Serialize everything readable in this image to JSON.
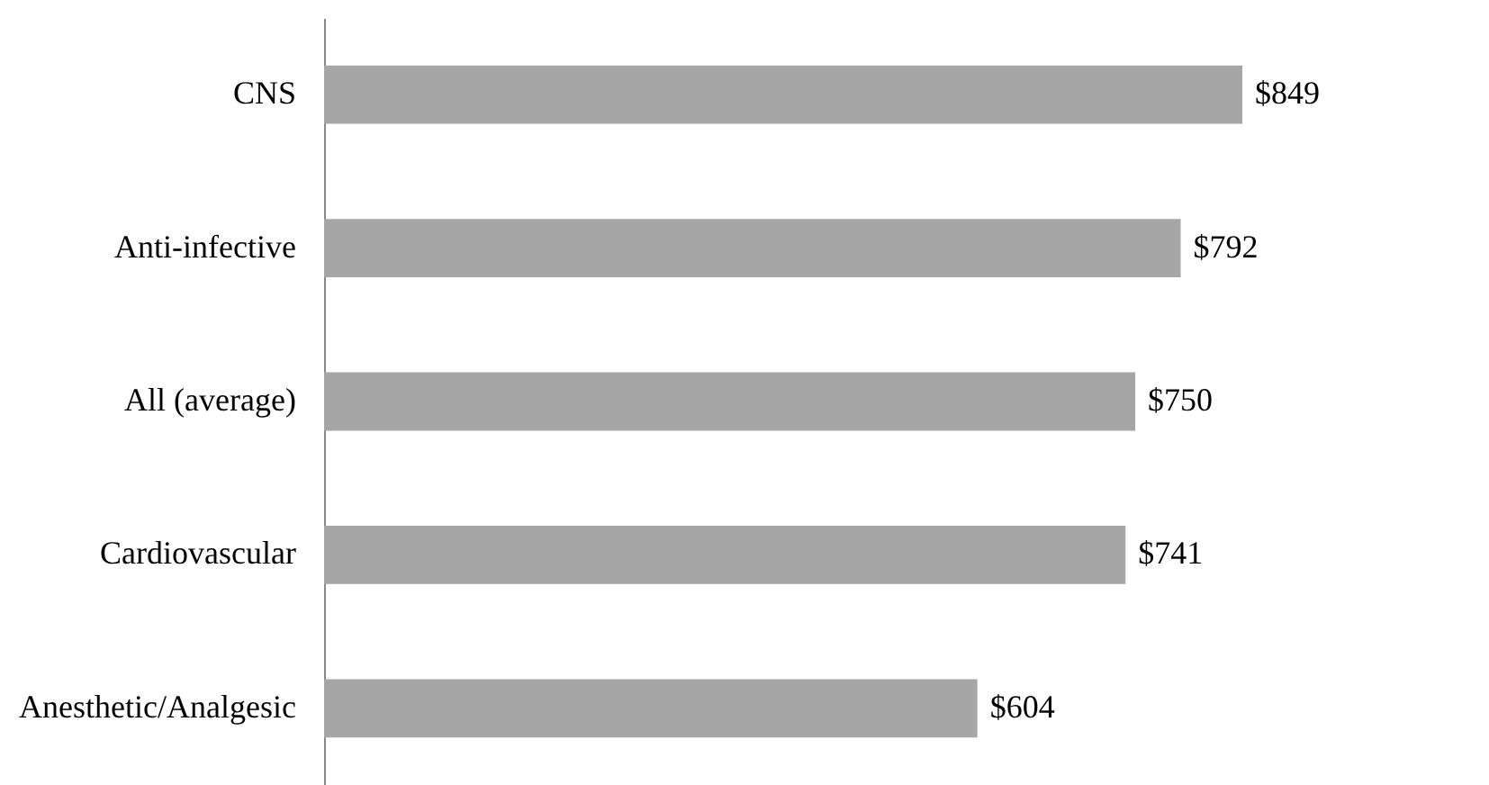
{
  "chart_data": {
    "type": "bar",
    "orientation": "horizontal",
    "categories": [
      "CNS",
      "Anti-infective",
      "All (average)",
      "Cardiovascular",
      "Anesthetic/Analgesic"
    ],
    "values": [
      849,
      792,
      750,
      741,
      604
    ],
    "value_labels": [
      "$849",
      "$792",
      "$750",
      "$741",
      "$604"
    ],
    "color": "#a6a6a6",
    "tick_labels": "y"
  }
}
